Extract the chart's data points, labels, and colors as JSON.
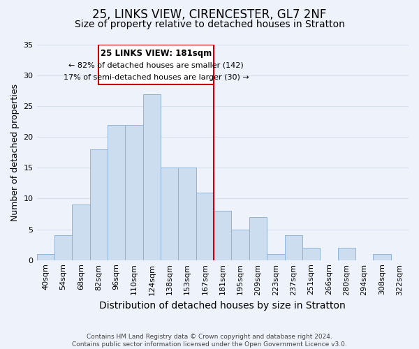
{
  "title": "25, LINKS VIEW, CIRENCESTER, GL7 2NF",
  "subtitle": "Size of property relative to detached houses in Stratton",
  "xlabel": "Distribution of detached houses by size in Stratton",
  "ylabel": "Number of detached properties",
  "footer_lines": [
    "Contains HM Land Registry data © Crown copyright and database right 2024.",
    "Contains public sector information licensed under the Open Government Licence v3.0."
  ],
  "bin_labels": [
    "40sqm",
    "54sqm",
    "68sqm",
    "82sqm",
    "96sqm",
    "110sqm",
    "124sqm",
    "138sqm",
    "153sqm",
    "167sqm",
    "181sqm",
    "195sqm",
    "209sqm",
    "223sqm",
    "237sqm",
    "251sqm",
    "266sqm",
    "280sqm",
    "294sqm",
    "308sqm",
    "322sqm"
  ],
  "bar_heights": [
    1,
    4,
    9,
    18,
    22,
    22,
    27,
    15,
    15,
    11,
    8,
    5,
    7,
    1,
    4,
    2,
    0,
    2,
    0,
    1,
    0
  ],
  "bar_color": "#ccddf0",
  "bar_edge_color": "#90b4d8",
  "vline_color": "#cc0000",
  "annotation_title": "25 LINKS VIEW: 181sqm",
  "annotation_line1": "← 82% of detached houses are smaller (142)",
  "annotation_line2": "17% of semi-detached houses are larger (30) →",
  "ylim": [
    0,
    35
  ],
  "yticks": [
    0,
    5,
    10,
    15,
    20,
    25,
    30,
    35
  ],
  "background_color": "#eef2fa",
  "grid_color": "#d8e0ee",
  "title_fontsize": 12,
  "subtitle_fontsize": 10,
  "xlabel_fontsize": 10,
  "ylabel_fontsize": 9,
  "tick_fontsize": 8,
  "footer_fontsize": 6.5
}
